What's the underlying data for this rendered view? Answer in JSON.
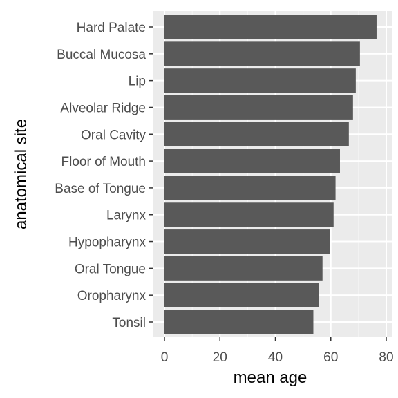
{
  "chart_data": {
    "type": "bar",
    "orientation": "horizontal",
    "categories": [
      "Hard Palate",
      "Buccal Mucosa",
      "Lip",
      "Alveolar Ridge",
      "Oral Cavity",
      "Floor of Mouth",
      "Base of Tongue",
      "Larynx",
      "Hypopharynx",
      "Oral Tongue",
      "Oropharynx",
      "Tonsil"
    ],
    "values": [
      76.5,
      70.5,
      69.0,
      68.0,
      66.5,
      63.3,
      61.7,
      61.0,
      59.7,
      57.0,
      55.7,
      53.7
    ],
    "xlabel": "mean age",
    "ylabel": "anatomical site",
    "xlim": [
      0,
      80
    ],
    "xticks": [
      0,
      20,
      40,
      60,
      80
    ],
    "xtick_labels": [
      "0",
      "20",
      "40",
      "60",
      "80"
    ],
    "grid": true,
    "colors": {
      "bar": "#595959",
      "panel": "#ebebeb",
      "grid_major": "#ffffff",
      "grid_minor": "#f5f5f5",
      "tick": "#333333"
    }
  }
}
